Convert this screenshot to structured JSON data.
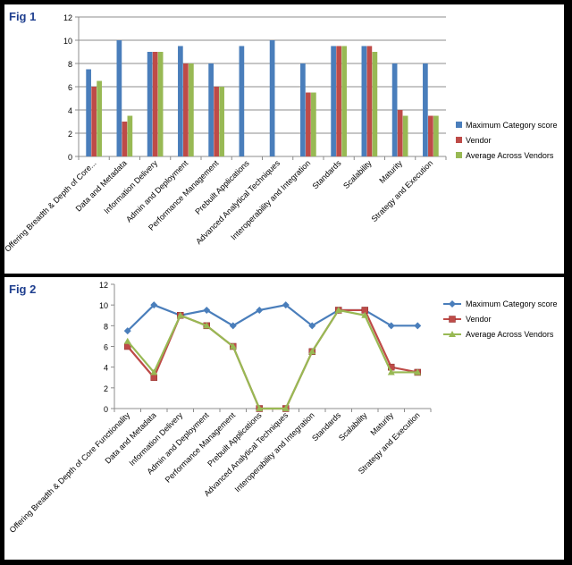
{
  "figures": [
    {
      "label": "Fig 1"
    },
    {
      "label": "Fig 2"
    }
  ],
  "colors": {
    "max": "#4a7ebb",
    "vendor": "#be4b48",
    "avg": "#98b954",
    "grid": "#8c8c8c",
    "label_color": "#1f3f8f"
  },
  "chart_data": [
    {
      "type": "bar",
      "title": "",
      "xlabel": "",
      "ylabel": "",
      "ylim": [
        0,
        12
      ],
      "yticks": [
        0,
        2,
        4,
        6,
        8,
        10,
        12
      ],
      "grid": true,
      "legend_position": "right",
      "categories": [
        "Offering Breadth & Depth of Core...",
        "Data and Metadata",
        "Information Delivery",
        "Admin and Deployment",
        "Performance Management",
        "Prebuilt Applications",
        "Advanced Analytical Techniques",
        "Interoperability and Integration",
        "Standards",
        "Scalability",
        "Maturity",
        "Strategy and Execution"
      ],
      "series": [
        {
          "name": "Maximum Category score",
          "values": [
            7.5,
            10,
            9,
            9.5,
            8,
            9.5,
            10,
            8,
            9.5,
            9.5,
            8,
            8
          ]
        },
        {
          "name": "Vendor",
          "values": [
            6,
            3,
            9,
            8,
            6,
            0,
            0,
            5.5,
            9.5,
            9.5,
            4,
            3.5
          ]
        },
        {
          "name": "Average Across Vendors",
          "values": [
            6.5,
            3.5,
            9,
            8,
            6,
            0,
            0,
            5.5,
            9.5,
            9,
            3.5,
            3.5
          ]
        }
      ]
    },
    {
      "type": "line",
      "title": "",
      "xlabel": "",
      "ylabel": "",
      "ylim": [
        0,
        12
      ],
      "yticks": [
        0,
        2,
        4,
        6,
        8,
        10,
        12
      ],
      "grid": false,
      "legend_position": "right",
      "categories": [
        "Offering Breadth & Depth of Core Functionality",
        "Data and Metadata",
        "Information Delivery",
        "Admin and Deployment",
        "Performance Management",
        "Prebuilt Applications",
        "Advanced Analytical Techniques",
        "Interoperability and Integration",
        "Standards",
        "Scalability",
        "Maturity",
        "Strategy and Execution"
      ],
      "series": [
        {
          "name": "Maximum Category score",
          "marker": "diamond",
          "values": [
            7.5,
            10,
            9,
            9.5,
            8,
            9.5,
            10,
            8,
            9.5,
            9.5,
            8,
            8
          ]
        },
        {
          "name": "Vendor",
          "marker": "square",
          "values": [
            6,
            3,
            9,
            8,
            6,
            0,
            0,
            5.5,
            9.5,
            9.5,
            4,
            3.5
          ]
        },
        {
          "name": "Average Across Vendors",
          "marker": "triangle",
          "values": [
            6.5,
            3.5,
            9,
            8,
            6,
            0,
            0,
            5.5,
            9.5,
            9,
            3.5,
            3.5
          ]
        }
      ]
    }
  ]
}
